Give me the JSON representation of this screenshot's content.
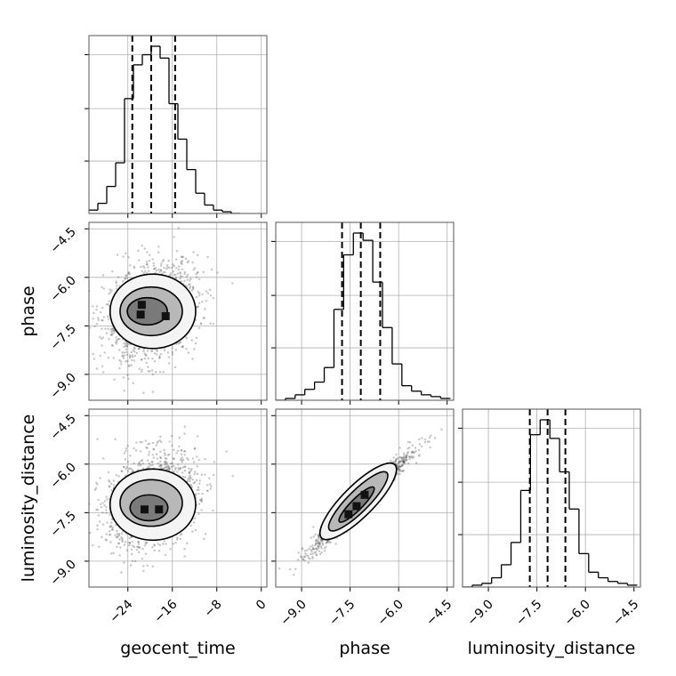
{
  "chart_data": {
    "type": "corner",
    "parameters": [
      "geocent_time",
      "phase",
      "luminosity_distance"
    ],
    "axis_labels": [
      "geocent_time",
      "phase",
      "luminosity_distance"
    ],
    "ranges": {
      "geocent_time": [
        -31,
        1
      ],
      "phase": [
        -9.8,
        -4.3
      ],
      "luminosity_distance": [
        -9.8,
        -4.3
      ]
    },
    "ticks": {
      "geocent_time": {
        "values": [
          -24,
          -16,
          -8,
          0
        ],
        "labels": [
          "−24",
          "−16",
          "−8",
          "0"
        ]
      },
      "phase": {
        "values": [
          -9.0,
          -7.5,
          -6.0,
          -4.5
        ],
        "labels": [
          "−9.0",
          "−7.5",
          "−6.0",
          "−4.5"
        ]
      },
      "luminosity_distance": {
        "values": [
          -9.0,
          -7.5,
          -6.0,
          -4.5
        ],
        "labels": [
          "−9.0",
          "−7.5",
          "−6.0",
          "−4.5"
        ]
      }
    },
    "grid": true,
    "histograms": [
      {
        "parameter": "geocent_time",
        "bin_edges": [
          -31,
          -29.4,
          -27.8,
          -26.2,
          -24.6,
          -23,
          -21.4,
          -19.8,
          -18.2,
          -16.6,
          -15,
          -13.4,
          -11.8,
          -10.2,
          -8.6,
          -7,
          -5.4,
          -3.8
        ],
        "counts": [
          2,
          6,
          16,
          30,
          68,
          88,
          94,
          99,
          92,
          65,
          44,
          26,
          12,
          5,
          2,
          1,
          0
        ],
        "quantile_lines": [
          -23.2,
          -19.8,
          -15.5
        ]
      },
      {
        "parameter": "phase",
        "bin_edges": [
          -9.8,
          -9.5,
          -9.2,
          -8.9,
          -8.6,
          -8.3,
          -8.0,
          -7.7,
          -7.4,
          -7.1,
          -6.8,
          -6.5,
          -6.2,
          -5.9,
          -5.6,
          -5.3,
          -5.0,
          -4.7,
          -4.4
        ],
        "counts": [
          0,
          1,
          3,
          6,
          10,
          18,
          50,
          80,
          92,
          88,
          65,
          40,
          20,
          8,
          5,
          3,
          2,
          1
        ],
        "quantile_lines": [
          -7.75,
          -7.17,
          -6.57
        ]
      },
      {
        "parameter": "luminosity_distance",
        "bin_edges": [
          -9.8,
          -9.5,
          -9.2,
          -8.9,
          -8.6,
          -8.3,
          -8.0,
          -7.7,
          -7.4,
          -7.1,
          -6.8,
          -6.5,
          -6.2,
          -5.9,
          -5.6,
          -5.3,
          -5.0,
          -4.7,
          -4.4
        ],
        "counts": [
          0,
          1,
          2,
          5,
          12,
          24,
          52,
          82,
          90,
          80,
          62,
          42,
          18,
          8,
          5,
          3,
          2,
          1
        ],
        "quantile_lines": [
          -7.72,
          -7.17,
          -6.62
        ]
      }
    ],
    "joint_2d": [
      {
        "x": "geocent_time",
        "y": "phase",
        "scatter": {
          "count": 1400,
          "x_mean": -19.8,
          "x_std": 4.1,
          "y_mean": -7.1,
          "y_std": 0.75,
          "correlation": 0.25
        },
        "contours": [
          {
            "level": "outer",
            "cx": -19.5,
            "cy": -7.05,
            "rx": 7.7,
            "ry": 1.15
          },
          {
            "level": "middle",
            "cx": -19.8,
            "cy": -7.05,
            "rx": 5.6,
            "ry": 0.75
          },
          {
            "level": "inner",
            "cx": -20.5,
            "cy": -7.05,
            "rx": 3.6,
            "ry": 0.42
          }
        ],
        "density_peaks": [
          {
            "x": -21.5,
            "y": -6.85
          },
          {
            "x": -21.7,
            "y": -7.15
          },
          {
            "x": -17.2,
            "y": -7.2
          }
        ]
      },
      {
        "x": "geocent_time",
        "y": "luminosity_distance",
        "scatter": {
          "count": 1400,
          "x_mean": -19.8,
          "x_std": 4.1,
          "y_mean": -7.1,
          "y_std": 0.75,
          "correlation": 0.25
        },
        "contours": [
          {
            "level": "outer",
            "cx": -19.5,
            "cy": -7.25,
            "rx": 7.7,
            "ry": 1.1
          },
          {
            "level": "middle",
            "cx": -19.8,
            "cy": -7.2,
            "rx": 5.6,
            "ry": 0.72
          },
          {
            "level": "inner",
            "cx": -20.2,
            "cy": -7.35,
            "rx": 3.4,
            "ry": 0.4
          }
        ],
        "density_peaks": [
          {
            "x": -21.0,
            "y": -7.4
          },
          {
            "x": -18.4,
            "y": -7.4
          }
        ]
      },
      {
        "x": "phase",
        "y": "luminosity_distance",
        "scatter": {
          "count": 1400,
          "x_mean": -7.15,
          "x_std": 0.75,
          "y_mean": -7.15,
          "y_std": 0.75,
          "correlation": 0.97
        },
        "contours": [
          {
            "level": "outer",
            "cx": -7.25,
            "cy": -7.15,
            "major": 1.6,
            "minor": 0.22
          },
          {
            "level": "middle",
            "cx": -7.25,
            "cy": -7.15,
            "major": 1.25,
            "minor": 0.15
          },
          {
            "level": "inner",
            "cx": -7.3,
            "cy": -7.25,
            "major": 0.75,
            "minor": 0.08
          }
        ],
        "density_peaks": [
          {
            "x": -7.55,
            "y": -7.55
          },
          {
            "x": -7.3,
            "y": -7.3
          },
          {
            "x": -7.05,
            "y": -6.95
          }
        ]
      }
    ]
  }
}
